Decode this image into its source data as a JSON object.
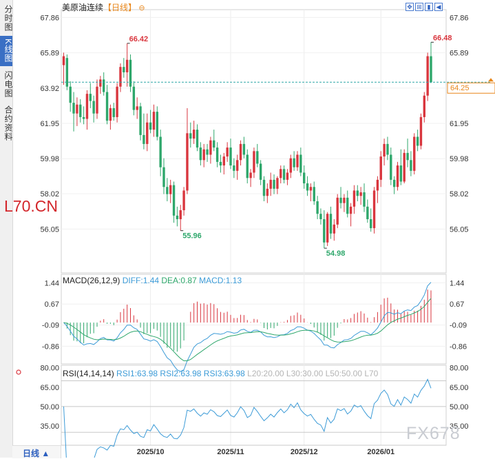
{
  "sidebar": {
    "tabs": [
      {
        "label": "分时图",
        "active": false
      },
      {
        "label": "K线图",
        "active": true
      },
      {
        "label": "闪电图",
        "active": false
      },
      {
        "label": "合约资料",
        "active": false
      }
    ]
  },
  "header": {
    "instrument": "美原油连续",
    "period_label": "【日线】",
    "sub_icon": "minus-circle-icon"
  },
  "toolbar": {
    "buttons": [
      {
        "icon": "crosshair-icon",
        "glyph": "✥"
      },
      {
        "icon": "grid-icon",
        "glyph": "⊞"
      },
      {
        "icon": "bar-chart-icon",
        "glyph": "▮"
      },
      {
        "icon": "arrow-left-icon",
        "glyph": "◀"
      }
    ]
  },
  "bottom_bar": {
    "period_select": "日线 ▲"
  },
  "watermarks": {
    "left": "L70.CN",
    "right": "FX678"
  },
  "colors": {
    "up": "#d9363e",
    "down": "#2ea76b",
    "price_line": "#2aa5a5",
    "price_label": "#e8861a",
    "macd_dif": "#3c9bd7",
    "macd_dea": "#2ea76b",
    "rsi": "#3c9bd7"
  },
  "chart_data": [
    {
      "type": "candlestick",
      "title": "美原油连续【日线】",
      "y_ticks": [
        "67.86",
        "65.89",
        "63.92",
        "61.95",
        "59.98",
        "58.02",
        "56.05"
      ],
      "ylim": [
        53.6,
        68.3
      ],
      "x_ticks": [
        {
          "label": "2025/10",
          "index": 26
        },
        {
          "label": "2025/11",
          "index": 50
        },
        {
          "label": "2025/12",
          "index": 72
        },
        {
          "label": "2026/01",
          "index": 95
        }
      ],
      "current_price": "64.25",
      "current_price_value": 64.25,
      "annotations": [
        {
          "text": "66.42",
          "index": 19,
          "value": 66.42,
          "kind": "high"
        },
        {
          "text": "55.96",
          "index": 35,
          "value": 55.96,
          "kind": "low"
        },
        {
          "text": "54.98",
          "index": 78,
          "value": 54.98,
          "kind": "low"
        },
        {
          "text": "66.48",
          "index": 110,
          "value": 66.48,
          "kind": "high"
        }
      ],
      "candles": [
        [
          65.2,
          65.9,
          64.1,
          65.7
        ],
        [
          65.6,
          65.8,
          63.8,
          64.0
        ],
        [
          64.0,
          64.3,
          62.6,
          63.1
        ],
        [
          63.1,
          63.7,
          61.5,
          62.5
        ],
        [
          62.5,
          63.4,
          61.8,
          63.0
        ],
        [
          63.0,
          63.3,
          62.0,
          62.3
        ],
        [
          62.3,
          62.9,
          61.9,
          62.2
        ],
        [
          62.2,
          63.8,
          61.6,
          63.6
        ],
        [
          63.6,
          64.2,
          62.8,
          63.2
        ],
        [
          63.2,
          63.5,
          62.0,
          62.5
        ],
        [
          62.5,
          64.4,
          62.2,
          64.0
        ],
        [
          64.0,
          64.6,
          63.6,
          64.4
        ],
        [
          64.4,
          64.8,
          63.5,
          63.7
        ],
        [
          63.7,
          64.1,
          61.9,
          62.1
        ],
        [
          62.1,
          63.0,
          61.6,
          62.8
        ],
        [
          62.8,
          63.1,
          62.1,
          62.3
        ],
        [
          62.3,
          64.2,
          62.0,
          64.0
        ],
        [
          64.0,
          65.3,
          63.7,
          65.1
        ],
        [
          65.1,
          65.6,
          64.5,
          64.8
        ],
        [
          64.8,
          66.42,
          64.0,
          65.5
        ],
        [
          65.5,
          65.8,
          63.7,
          64.0
        ],
        [
          64.0,
          64.3,
          62.4,
          62.7
        ],
        [
          62.7,
          63.4,
          62.2,
          62.9
        ],
        [
          62.9,
          63.1,
          61.0,
          61.3
        ],
        [
          61.3,
          62.5,
          60.5,
          60.8
        ],
        [
          60.8,
          62.5,
          60.4,
          62.0
        ],
        [
          62.0,
          62.7,
          61.4,
          61.6
        ],
        [
          61.6,
          63.0,
          61.2,
          62.6
        ],
        [
          62.6,
          62.9,
          61.0,
          61.2
        ],
        [
          61.2,
          61.6,
          59.0,
          59.5
        ],
        [
          59.5,
          60.0,
          58.0,
          58.4
        ],
        [
          58.4,
          58.9,
          57.6,
          58.0
        ],
        [
          58.0,
          58.8,
          57.5,
          58.5
        ],
        [
          58.5,
          58.7,
          56.4,
          56.8
        ],
        [
          56.8,
          57.3,
          56.2,
          56.6
        ],
        [
          56.6,
          57.4,
          55.96,
          57.1
        ],
        [
          57.1,
          58.4,
          56.8,
          58.2
        ],
        [
          58.2,
          62.8,
          58.0,
          61.4
        ],
        [
          61.4,
          62.0,
          60.6,
          61.1
        ],
        [
          61.1,
          62.1,
          60.8,
          61.6
        ],
        [
          61.6,
          61.9,
          60.4,
          60.6
        ],
        [
          60.6,
          60.9,
          59.6,
          59.9
        ],
        [
          59.9,
          60.8,
          59.5,
          60.5
        ],
        [
          60.5,
          60.8,
          59.8,
          60.2
        ],
        [
          60.2,
          61.2,
          59.7,
          61.0
        ],
        [
          61.0,
          61.6,
          60.4,
          60.6
        ],
        [
          60.6,
          60.9,
          59.5,
          59.8
        ],
        [
          59.8,
          60.2,
          59.2,
          59.6
        ],
        [
          59.6,
          60.3,
          59.1,
          60.1
        ],
        [
          60.1,
          60.9,
          59.8,
          60.6
        ],
        [
          60.6,
          61.1,
          59.4,
          59.6
        ],
        [
          59.6,
          60.0,
          58.9,
          59.3
        ],
        [
          59.3,
          60.2,
          58.8,
          59.9
        ],
        [
          59.9,
          61.0,
          59.6,
          60.8
        ],
        [
          60.8,
          61.2,
          60.0,
          60.2
        ],
        [
          60.2,
          60.5,
          58.6,
          58.9
        ],
        [
          58.9,
          59.4,
          58.4,
          59.2
        ],
        [
          59.2,
          60.6,
          58.9,
          60.4
        ],
        [
          60.4,
          60.8,
          59.5,
          59.7
        ],
        [
          59.7,
          59.9,
          58.5,
          58.8
        ],
        [
          58.8,
          59.0,
          57.6,
          57.9
        ],
        [
          57.9,
          58.6,
          57.5,
          58.3
        ],
        [
          58.3,
          59.2,
          57.9,
          58.8
        ],
        [
          58.8,
          59.1,
          58.0,
          58.3
        ],
        [
          58.3,
          59.0,
          58.0,
          58.9
        ],
        [
          58.9,
          59.6,
          58.6,
          59.4
        ],
        [
          59.4,
          59.6,
          58.6,
          58.8
        ],
        [
          58.8,
          59.4,
          58.5,
          59.2
        ],
        [
          59.2,
          60.2,
          58.9,
          60.0
        ],
        [
          60.0,
          60.4,
          59.3,
          59.5
        ],
        [
          59.5,
          60.4,
          59.3,
          60.2
        ],
        [
          60.2,
          60.6,
          59.0,
          59.2
        ],
        [
          59.2,
          59.6,
          58.3,
          58.6
        ],
        [
          58.6,
          59.0,
          57.9,
          58.2
        ],
        [
          58.2,
          58.6,
          57.6,
          58.4
        ],
        [
          58.4,
          58.7,
          57.4,
          57.6
        ],
        [
          57.6,
          57.9,
          56.6,
          56.9
        ],
        [
          56.9,
          57.2,
          56.3,
          56.6
        ],
        [
          56.6,
          57.1,
          54.98,
          55.3
        ],
        [
          55.3,
          57.0,
          55.1,
          56.9
        ],
        [
          56.9,
          57.3,
          55.5,
          55.8
        ],
        [
          55.8,
          56.6,
          55.4,
          56.3
        ],
        [
          56.3,
          58.0,
          56.1,
          57.8
        ],
        [
          57.8,
          58.4,
          57.2,
          57.5
        ],
        [
          57.5,
          58.0,
          57.0,
          57.8
        ],
        [
          57.8,
          58.2,
          56.7,
          56.9
        ],
        [
          56.9,
          57.5,
          56.2,
          57.3
        ],
        [
          57.3,
          58.5,
          56.9,
          58.2
        ],
        [
          58.2,
          58.5,
          57.6,
          57.9
        ],
        [
          57.9,
          58.4,
          57.4,
          58.1
        ],
        [
          58.1,
          58.6,
          57.0,
          57.3
        ],
        [
          57.3,
          57.7,
          56.4,
          56.6
        ],
        [
          56.6,
          57.2,
          55.9,
          56.1
        ],
        [
          56.1,
          58.4,
          55.8,
          58.2
        ],
        [
          58.2,
          59.0,
          57.5,
          58.8
        ],
        [
          58.8,
          60.4,
          58.4,
          60.1
        ],
        [
          60.1,
          61.1,
          59.6,
          60.8
        ],
        [
          60.8,
          61.2,
          59.9,
          60.2
        ],
        [
          60.2,
          60.6,
          58.5,
          58.8
        ],
        [
          58.8,
          59.0,
          58.0,
          58.4
        ],
        [
          58.4,
          59.8,
          58.2,
          59.6
        ],
        [
          59.6,
          60.5,
          58.5,
          58.7
        ],
        [
          58.7,
          60.5,
          58.6,
          60.3
        ],
        [
          60.3,
          61.1,
          59.5,
          59.9
        ],
        [
          59.9,
          60.4,
          59.0,
          59.3
        ],
        [
          59.3,
          61.4,
          59.1,
          61.2
        ],
        [
          61.2,
          61.6,
          60.4,
          60.7
        ],
        [
          60.7,
          62.5,
          60.5,
          62.3
        ],
        [
          62.3,
          63.7,
          62.0,
          63.5
        ],
        [
          63.5,
          65.9,
          63.2,
          65.7
        ],
        [
          65.7,
          66.48,
          64.2,
          64.25
        ]
      ]
    },
    {
      "type": "macd",
      "title": "MACD(26,12,9)",
      "params": "(26,12,9)",
      "legend": [
        "DIFF:1.44",
        "DEA:0.87",
        "MACD:1.13"
      ],
      "values": {
        "DIFF": 1.44,
        "DEA": 0.87,
        "MACD": 1.13
      },
      "y_ticks": [
        "1.44",
        "0.67",
        "-0.09",
        "-0.86"
      ],
      "ylim": [
        -1.5,
        1.75
      ]
    },
    {
      "type": "rsi",
      "title": "RSI(14,14,14)",
      "legend": [
        "RSI1:63.98",
        "RSI2:63.98",
        "RSI3:63.98",
        "L20:20.00",
        "L30:30.00",
        "L50:50.00",
        "L70"
      ],
      "values": {
        "RSI1": 63.98,
        "RSI2": 63.98,
        "RSI3": 63.98,
        "L20": 20.0,
        "L30": 30.0,
        "L50": 50.0
      },
      "y_ticks": [
        "80.00",
        "65.00",
        "50.00",
        "35.00"
      ],
      "ylim": [
        20,
        82
      ]
    }
  ]
}
